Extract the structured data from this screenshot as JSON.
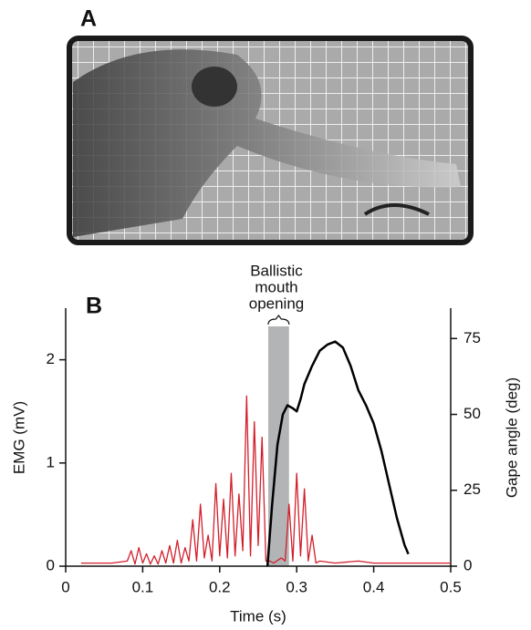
{
  "panel_labels": [
    "A",
    "B"
  ],
  "chart_data": {
    "type": "line",
    "xlabel": "Time (s)",
    "ylabel": "EMG (mV)",
    "y2label": "Gape angle (deg)",
    "annotation": [
      "Ballistic",
      "mouth",
      "opening"
    ],
    "highlight_x": [
      0.263,
      0.29
    ],
    "highlight_color": "#b3b4b6",
    "xlim": [
      0,
      0.5
    ],
    "xticks": [
      0,
      0.1,
      0.2,
      0.3,
      0.4,
      0.5
    ],
    "ylim": [
      0,
      2.5
    ],
    "yticks": [
      0,
      1,
      2
    ],
    "y2lim": [
      0,
      85
    ],
    "y2ticks": [
      0,
      25,
      50,
      75
    ],
    "series": [
      {
        "color": "#d21f2b",
        "x": [
          0.02,
          0.06,
          0.08,
          0.085,
          0.09,
          0.095,
          0.1,
          0.105,
          0.11,
          0.115,
          0.12,
          0.125,
          0.13,
          0.135,
          0.14,
          0.145,
          0.15,
          0.155,
          0.16,
          0.165,
          0.17,
          0.175,
          0.18,
          0.185,
          0.19,
          0.195,
          0.2,
          0.205,
          0.21,
          0.215,
          0.22,
          0.225,
          0.23,
          0.235,
          0.24,
          0.245,
          0.25,
          0.255,
          0.26,
          0.265,
          0.27,
          0.28,
          0.285,
          0.29,
          0.295,
          0.3,
          0.305,
          0.31,
          0.315,
          0.32,
          0.325,
          0.33,
          0.35,
          0.38,
          0.4,
          0.45,
          0.5
        ],
        "values": [
          0.03,
          0.03,
          0.05,
          0.15,
          0.02,
          0.18,
          0.03,
          0.12,
          0.02,
          0.1,
          0.02,
          0.15,
          0.03,
          0.2,
          0.03,
          0.25,
          0.03,
          0.18,
          0.05,
          0.45,
          0.05,
          0.6,
          0.08,
          0.3,
          0.05,
          0.8,
          0.1,
          0.65,
          0.08,
          0.9,
          0.1,
          0.7,
          0.15,
          1.65,
          0.1,
          1.4,
          0.2,
          1.25,
          0.05,
          0.05,
          0.03,
          0.08,
          0.05,
          0.6,
          0.05,
          0.9,
          0.1,
          0.75,
          0.05,
          0.3,
          0.03,
          0.05,
          0.03,
          0.05,
          0.03,
          0.03,
          0.03
        ]
      },
      {
        "color": "#000000",
        "axis": "y2",
        "x": [
          0.262,
          0.268,
          0.275,
          0.282,
          0.288,
          0.295,
          0.3,
          0.305,
          0.31,
          0.32,
          0.33,
          0.34,
          0.35,
          0.36,
          0.37,
          0.38,
          0.39,
          0.4,
          0.41,
          0.42,
          0.43,
          0.44,
          0.445
        ],
        "values": [
          0,
          20,
          40,
          50,
          53,
          52,
          51,
          55,
          60,
          66,
          71,
          73,
          74,
          72,
          66,
          58,
          53,
          47,
          38,
          27,
          16,
          7,
          4
        ]
      }
    ]
  }
}
